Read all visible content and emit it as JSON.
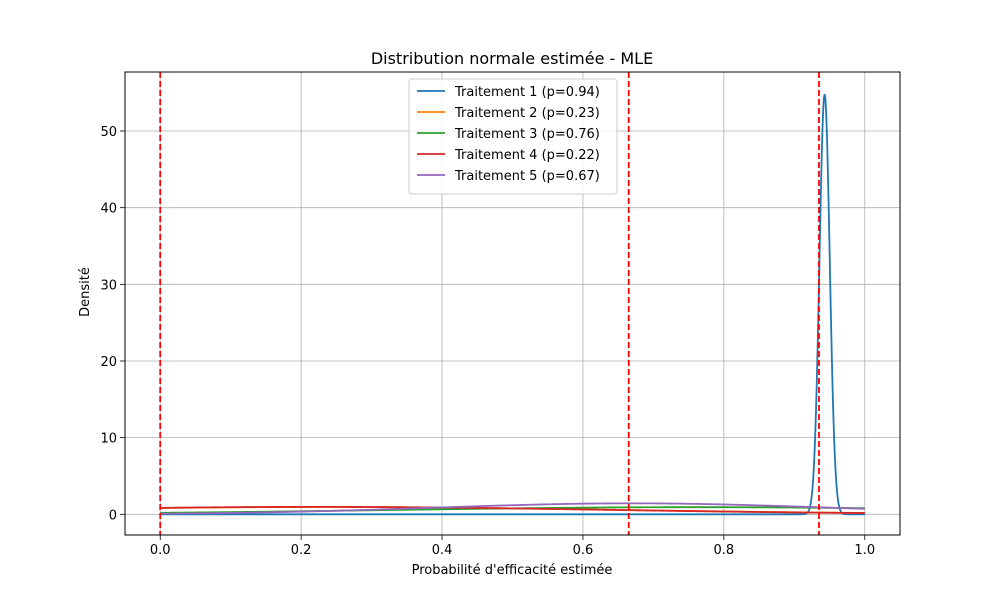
{
  "chart_data": {
    "type": "line",
    "title": "Distribution normale estimée - MLE",
    "xlabel": "Probabilité d'efficacité estimée",
    "ylabel": "Densité",
    "xlim": [
      -0.05,
      1.05
    ],
    "ylim": [
      -2.7,
      57.7
    ],
    "grid": true,
    "legend_position": "top-center",
    "x_ticks": [
      0.0,
      0.2,
      0.4,
      0.6,
      0.8,
      1.0
    ],
    "x_tick_labels": [
      "0.0",
      "0.2",
      "0.4",
      "0.6",
      "0.8",
      "1.0"
    ],
    "y_ticks": [
      0,
      10,
      20,
      30,
      40,
      50
    ],
    "y_tick_labels": [
      "0",
      "10",
      "20",
      "30",
      "40",
      "50"
    ],
    "x_range": [
      0,
      1
    ],
    "series": [
      {
        "name": "Traitement 1 (p=0.94)",
        "color": "#1f77b4",
        "mean": 0.943,
        "sd": 0.0073,
        "peak": 54.8
      },
      {
        "name": "Traitement 2 (p=0.23)",
        "color": "#ff7f0e",
        "mean": 0.23,
        "sd": 0.42,
        "peak": 0.95
      },
      {
        "name": "Traitement 3 (p=0.76)",
        "color": "#2ca02c",
        "mean": 0.76,
        "sd": 0.43,
        "peak": 0.93
      },
      {
        "name": "Traitement 4 (p=0.22)",
        "color": "#d62728",
        "mean": 0.22,
        "sd": 0.41,
        "peak": 0.97
      },
      {
        "name": "Traitement 5 (p=0.67)",
        "color": "#9467bd",
        "mean": 0.67,
        "sd": 0.28,
        "peak": 1.43
      }
    ],
    "vertical_lines": [
      {
        "x": 0.0,
        "color": "#ff0000",
        "style": "dashed"
      },
      {
        "x": 0.665,
        "color": "#ff0000",
        "style": "dashed"
      },
      {
        "x": 0.935,
        "color": "#ff0000",
        "style": "dashed"
      }
    ]
  }
}
